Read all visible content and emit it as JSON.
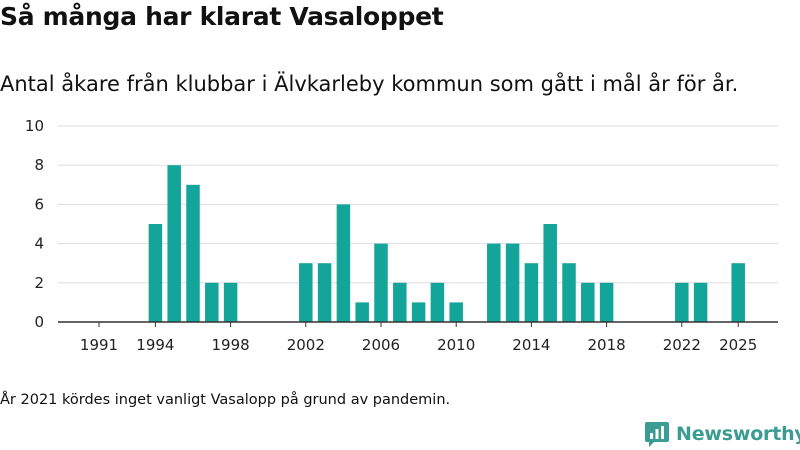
{
  "title": "Så många har klarat Vasaloppet",
  "subtitle": "Antal åkare från klubbar i Älvkarleby kommun som gått i mål år för år.",
  "footnote": "År 2021 kördes inget vanligt Vasalopp på grund av pandemin.",
  "brand": {
    "name": "Newsworthy",
    "icon": "newsworthy-logo-icon",
    "color": "#3a9c93"
  },
  "colors": {
    "bar": "#14a59a",
    "grid": "#dddddd",
    "axis": "#333333"
  },
  "chart_data": {
    "type": "bar",
    "x": [
      1991,
      1992,
      1993,
      1994,
      1995,
      1996,
      1997,
      1998,
      1999,
      2000,
      2001,
      2002,
      2003,
      2004,
      2005,
      2006,
      2007,
      2008,
      2009,
      2010,
      2011,
      2012,
      2013,
      2014,
      2015,
      2016,
      2017,
      2018,
      2019,
      2020,
      2021,
      2022,
      2023,
      2024,
      2025
    ],
    "values": [
      0,
      0,
      0,
      5,
      8,
      7,
      2,
      2,
      0,
      0,
      0,
      3,
      3,
      6,
      1,
      4,
      2,
      1,
      2,
      1,
      0,
      4,
      4,
      3,
      5,
      3,
      2,
      2,
      0,
      0,
      0,
      2,
      2,
      0,
      3
    ],
    "x_ticks": [
      "1991",
      "1994",
      "1998",
      "2002",
      "2006",
      "2010",
      "2014",
      "2018",
      "2022",
      "2025"
    ],
    "y_ticks": [
      "0",
      "2",
      "4",
      "6",
      "8",
      "10"
    ],
    "ylim": [
      0,
      10
    ],
    "grid": true,
    "xlabel": "",
    "ylabel": ""
  }
}
